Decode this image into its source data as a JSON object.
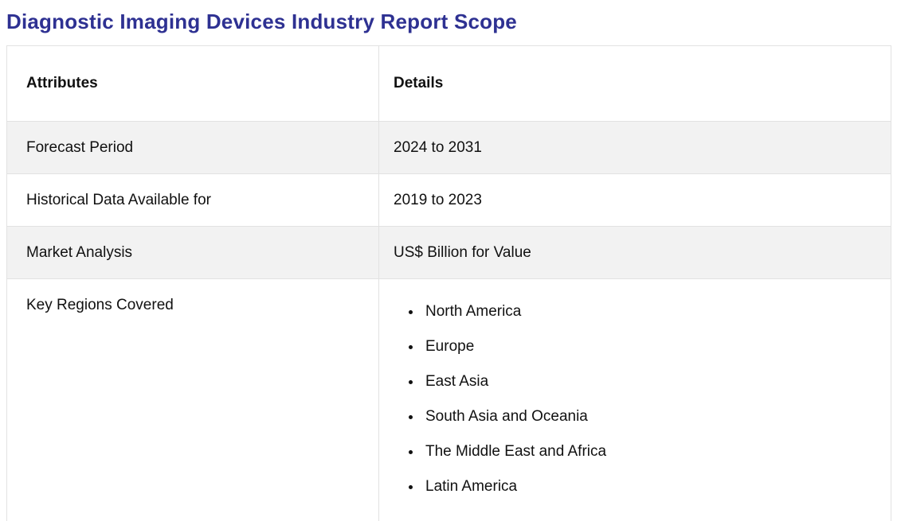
{
  "page": {
    "title": "Diagnostic Imaging Devices Industry Report Scope"
  },
  "colors": {
    "title_accent": "#2e3192",
    "row_alt_background": "#f2f2f2",
    "table_border": "#e2e2e2"
  },
  "table": {
    "headers": [
      "Attributes",
      "Details"
    ],
    "rows": [
      {
        "attribute": "Forecast Period",
        "details": "2024 to 2031"
      },
      {
        "attribute": "Historical Data Available for",
        "details": "2019 to 2023"
      },
      {
        "attribute": "Market Analysis",
        "details": "US$ Billion for Value"
      },
      {
        "attribute": "Key Regions Covered",
        "regions": [
          "North America",
          "Europe",
          "East Asia",
          "South Asia and Oceania",
          "The Middle East and Africa",
          "Latin America"
        ]
      }
    ]
  }
}
